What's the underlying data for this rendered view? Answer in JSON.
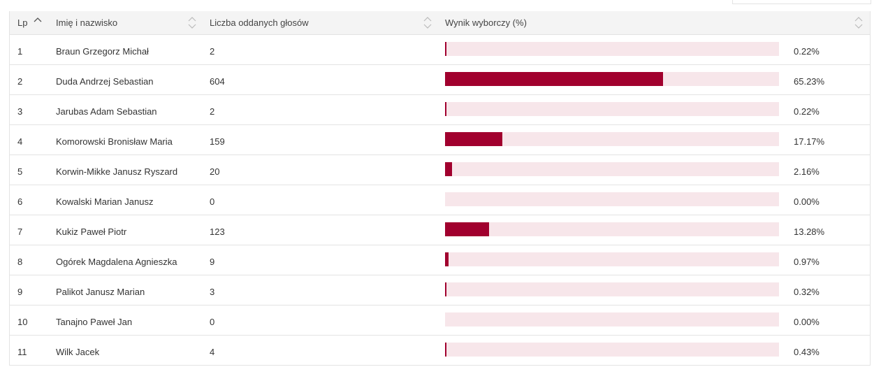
{
  "header": {
    "lp": "Lp",
    "name": "Imię i nazwisko",
    "votes": "Liczba oddanych głosów",
    "result": "Wynik wyborczy (%)"
  },
  "colors": {
    "bar": "#a1002e",
    "track": "#f7e6ea",
    "header_bg": "#f4f4f4"
  },
  "rows": [
    {
      "lp": "1",
      "name": "Braun Grzegorz Michał",
      "votes": "2",
      "pct": "0.22%",
      "value": 0.22
    },
    {
      "lp": "2",
      "name": "Duda Andrzej Sebastian",
      "votes": "604",
      "pct": "65.23%",
      "value": 65.23
    },
    {
      "lp": "3",
      "name": "Jarubas Adam Sebastian",
      "votes": "2",
      "pct": "0.22%",
      "value": 0.22
    },
    {
      "lp": "4",
      "name": "Komorowski Bronisław Maria",
      "votes": "159",
      "pct": "17.17%",
      "value": 17.17
    },
    {
      "lp": "5",
      "name": "Korwin-Mikke Janusz Ryszard",
      "votes": "20",
      "pct": "2.16%",
      "value": 2.16
    },
    {
      "lp": "6",
      "name": "Kowalski Marian Janusz",
      "votes": "0",
      "pct": "0.00%",
      "value": 0
    },
    {
      "lp": "7",
      "name": "Kukiz Paweł Piotr",
      "votes": "123",
      "pct": "13.28%",
      "value": 13.28
    },
    {
      "lp": "8",
      "name": "Ogórek Magdalena Agnieszka",
      "votes": "9",
      "pct": "0.97%",
      "value": 0.97
    },
    {
      "lp": "9",
      "name": "Palikot Janusz Marian",
      "votes": "3",
      "pct": "0.32%",
      "value": 0.32
    },
    {
      "lp": "10",
      "name": "Tanajno Paweł Jan",
      "votes": "0",
      "pct": "0.00%",
      "value": 0
    },
    {
      "lp": "11",
      "name": "Wilk Jacek",
      "votes": "4",
      "pct": "0.43%",
      "value": 0.43
    }
  ]
}
